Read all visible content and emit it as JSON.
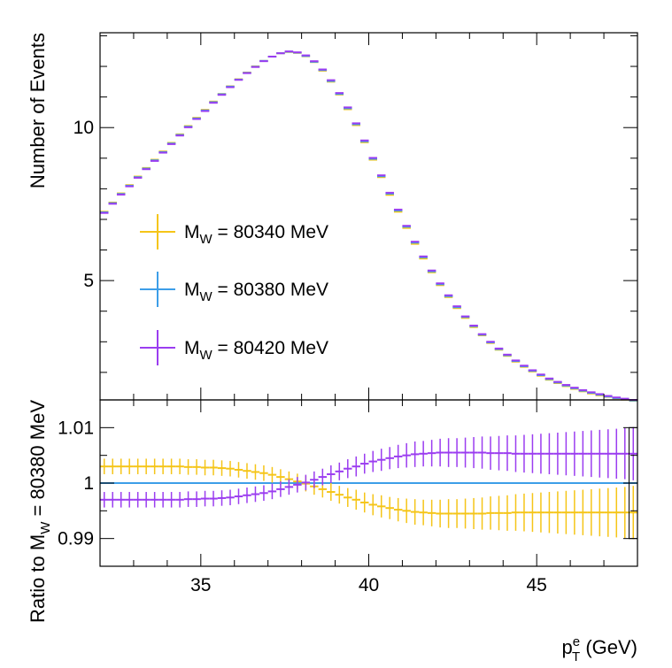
{
  "chart_data": [
    {
      "type": "histogram",
      "panel": "top",
      "xlabel_main": "p",
      "xlabel_sup": "e",
      "xlabel_sub": "T",
      "xlabel_unit": " (GeV)",
      "ylabel": "Number of Events",
      "xlim": [
        32,
        48
      ],
      "ylim": [
        1.1,
        13.1
      ],
      "yticks": [
        5,
        10
      ],
      "ytick_labels": [
        "5",
        "10"
      ],
      "bin_width": 0.25,
      "x": [
        32.125,
        32.375,
        32.625,
        32.875,
        33.125,
        33.375,
        33.625,
        33.875,
        34.125,
        34.375,
        34.625,
        34.875,
        35.125,
        35.375,
        35.625,
        35.875,
        36.125,
        36.375,
        36.625,
        36.875,
        37.125,
        37.375,
        37.625,
        37.875,
        38.125,
        38.375,
        38.625,
        38.875,
        39.125,
        39.375,
        39.625,
        39.875,
        40.125,
        40.375,
        40.625,
        40.875,
        41.125,
        41.375,
        41.625,
        41.875,
        42.125,
        42.375,
        42.625,
        42.875,
        43.125,
        43.375,
        43.625,
        43.875,
        44.125,
        44.375,
        44.625,
        44.875,
        45.125,
        45.375,
        45.625,
        45.875,
        46.125,
        46.375,
        46.625,
        46.875,
        47.125,
        47.375,
        47.625,
        47.875
      ],
      "series": [
        {
          "name": "80340 MeV",
          "color": "#f5c518",
          "values": [
            7.25,
            7.55,
            7.85,
            8.12,
            8.4,
            8.68,
            8.95,
            9.22,
            9.5,
            9.78,
            10.05,
            10.32,
            10.58,
            10.85,
            11.1,
            11.35,
            11.58,
            11.8,
            12.0,
            12.18,
            12.32,
            12.43,
            12.47,
            12.44,
            12.33,
            12.14,
            11.86,
            11.5,
            11.08,
            10.6,
            10.08,
            9.52,
            8.95,
            8.38,
            7.8,
            7.25,
            6.72,
            6.2,
            5.72,
            5.27,
            4.85,
            4.46,
            4.1,
            3.78,
            3.48,
            3.21,
            2.96,
            2.74,
            2.54,
            2.35,
            2.18,
            2.03,
            1.89,
            1.76,
            1.65,
            1.55,
            1.46,
            1.38,
            1.31,
            1.25,
            1.2,
            1.15,
            1.11,
            1.07
          ]
        },
        {
          "name": "80380 MeV",
          "color": "#3d9ee8",
          "values": [
            7.23,
            7.53,
            7.83,
            8.1,
            8.38,
            8.66,
            8.93,
            9.2,
            9.48,
            9.76,
            10.03,
            10.3,
            10.56,
            10.83,
            11.09,
            11.34,
            11.57,
            11.79,
            11.99,
            12.18,
            12.32,
            12.43,
            12.48,
            12.45,
            12.34,
            12.15,
            11.88,
            11.52,
            11.1,
            10.63,
            10.11,
            9.55,
            8.98,
            8.41,
            7.84,
            7.29,
            6.76,
            6.24,
            5.76,
            5.3,
            4.88,
            4.49,
            4.13,
            3.81,
            3.51,
            3.23,
            2.98,
            2.76,
            2.56,
            2.37,
            2.2,
            2.05,
            1.91,
            1.78,
            1.67,
            1.57,
            1.48,
            1.4,
            1.33,
            1.27,
            1.21,
            1.16,
            1.12,
            1.08
          ]
        },
        {
          "name": "80420 MeV",
          "color": "#9b3df0",
          "values": [
            7.21,
            7.51,
            7.81,
            8.08,
            8.36,
            8.64,
            8.91,
            9.18,
            9.46,
            9.74,
            10.01,
            10.28,
            10.54,
            10.81,
            11.07,
            11.32,
            11.56,
            11.78,
            11.98,
            12.17,
            12.32,
            12.43,
            12.49,
            12.46,
            12.36,
            12.17,
            11.9,
            11.55,
            11.13,
            10.66,
            10.14,
            9.58,
            9.01,
            8.44,
            7.87,
            7.32,
            6.79,
            6.27,
            5.79,
            5.33,
            4.91,
            4.52,
            4.16,
            3.83,
            3.53,
            3.25,
            3.0,
            2.78,
            2.58,
            2.39,
            2.22,
            2.07,
            1.93,
            1.8,
            1.69,
            1.59,
            1.5,
            1.42,
            1.35,
            1.29,
            1.23,
            1.18,
            1.14,
            1.1
          ]
        }
      ],
      "legend": {
        "placement": "center-left",
        "prefix": "M",
        "subscript": "W",
        "entries": [
          {
            "label": " = 80340 MeV",
            "color": "#f5c518"
          },
          {
            "label": " = 80380 MeV",
            "color": "#3d9ee8"
          },
          {
            "label": " = 80420 MeV",
            "color": "#9b3df0"
          }
        ]
      }
    },
    {
      "type": "ratio",
      "panel": "bottom",
      "ylabel_prefix": "Ratio to M",
      "ylabel_sub": "W",
      "ylabel_suffix": " = 80380 MeV",
      "xlim": [
        32,
        48
      ],
      "ylim": [
        0.985,
        1.015
      ],
      "xticks": [
        35,
        40,
        45
      ],
      "xtick_labels": [
        "35",
        "40",
        "45"
      ],
      "yticks": [
        0.99,
        1,
        1.01
      ],
      "ytick_labels": [
        "0.99",
        "1",
        "1.01"
      ],
      "series": [
        {
          "name": "80340 MeV",
          "color": "#f5c518",
          "values": [
            1.003,
            1.003,
            1.003,
            1.003,
            1.003,
            1.003,
            1.003,
            1.003,
            1.003,
            1.003,
            1.0029,
            1.0029,
            1.0028,
            1.0028,
            1.0027,
            1.0026,
            1.0024,
            1.0022,
            1.002,
            1.0018,
            1.0015,
            1.0011,
            1.0007,
            1.0003,
            0.9999,
            0.9994,
            0.9989,
            0.9984,
            0.9979,
            0.9974,
            0.997,
            0.9965,
            0.9961,
            0.9958,
            0.9955,
            0.9952,
            0.995,
            0.9948,
            0.9947,
            0.9946,
            0.9945,
            0.9945,
            0.9945,
            0.9945,
            0.9945,
            0.9945,
            0.9946,
            0.9946,
            0.9946,
            0.9947,
            0.9947,
            0.9947,
            0.9947,
            0.9947,
            0.9947,
            0.9947,
            0.9947,
            0.9947,
            0.9947,
            0.9947,
            0.9947,
            0.9947,
            0.9947,
            0.9947
          ],
          "errors": [
            0.0014,
            0.0014,
            0.0014,
            0.0014,
            0.0014,
            0.0014,
            0.0014,
            0.0014,
            0.0014,
            0.0014,
            0.0014,
            0.0014,
            0.0014,
            0.0014,
            0.0014,
            0.0014,
            0.0014,
            0.0014,
            0.0014,
            0.0014,
            0.0014,
            0.0014,
            0.0014,
            0.0014,
            0.0014,
            0.0015,
            0.0015,
            0.0016,
            0.0016,
            0.0017,
            0.0018,
            0.0018,
            0.0019,
            0.002,
            0.002,
            0.0021,
            0.0022,
            0.0023,
            0.0023,
            0.0024,
            0.0025,
            0.0026,
            0.0026,
            0.0027,
            0.0028,
            0.0029,
            0.003,
            0.0031,
            0.0032,
            0.0033,
            0.0034,
            0.0035,
            0.0036,
            0.0037,
            0.0038,
            0.0039,
            0.004,
            0.0041,
            0.0042,
            0.0043,
            0.0044,
            0.0045,
            0.0046,
            0.0048
          ]
        },
        {
          "name": "80380 MeV",
          "color": "#3d9ee8",
          "values": [
            1.0,
            1.0
          ]
        },
        {
          "name": "80420 MeV",
          "color": "#9b3df0",
          "values": [
            0.997,
            0.997,
            0.997,
            0.997,
            0.997,
            0.997,
            0.997,
            0.997,
            0.997,
            0.997,
            0.9971,
            0.9971,
            0.9972,
            0.9972,
            0.9973,
            0.9974,
            0.9976,
            0.9978,
            0.998,
            0.9982,
            0.9985,
            0.9989,
            0.9993,
            0.9997,
            1.0001,
            1.0006,
            1.0011,
            1.0016,
            1.0021,
            1.0026,
            1.003,
            1.0035,
            1.0039,
            1.0042,
            1.0045,
            1.0048,
            1.005,
            1.0052,
            1.0053,
            1.0054,
            1.0055,
            1.0055,
            1.0055,
            1.0055,
            1.0055,
            1.0055,
            1.0054,
            1.0054,
            1.0054,
            1.0053,
            1.0053,
            1.0053,
            1.0053,
            1.0053,
            1.0053,
            1.0053,
            1.0053,
            1.0053,
            1.0053,
            1.0053,
            1.0053,
            1.0053,
            1.0053,
            1.0053
          ],
          "errors": [
            0.0014,
            0.0014,
            0.0014,
            0.0014,
            0.0014,
            0.0014,
            0.0014,
            0.0014,
            0.0014,
            0.0014,
            0.0014,
            0.0014,
            0.0014,
            0.0014,
            0.0014,
            0.0014,
            0.0014,
            0.0014,
            0.0014,
            0.0014,
            0.0014,
            0.0014,
            0.0014,
            0.0014,
            0.0014,
            0.0015,
            0.0015,
            0.0016,
            0.0016,
            0.0017,
            0.0018,
            0.0018,
            0.0019,
            0.002,
            0.002,
            0.0021,
            0.0022,
            0.0023,
            0.0023,
            0.0024,
            0.0025,
            0.0026,
            0.0026,
            0.0027,
            0.0028,
            0.0029,
            0.003,
            0.0031,
            0.0032,
            0.0033,
            0.0034,
            0.0035,
            0.0036,
            0.0037,
            0.0038,
            0.0039,
            0.004,
            0.0041,
            0.0042,
            0.0043,
            0.0044,
            0.0045,
            0.0046,
            0.0048
          ]
        }
      ]
    }
  ]
}
